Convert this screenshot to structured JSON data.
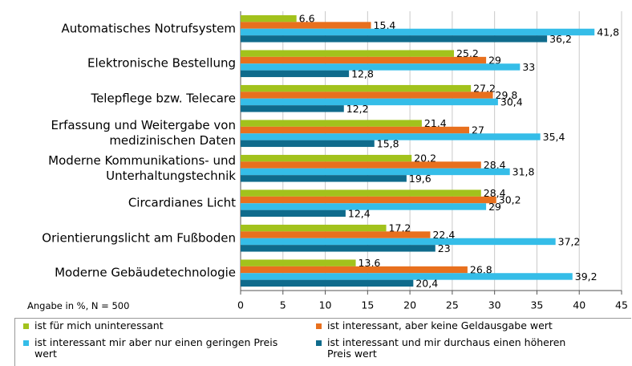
{
  "chart_data": {
    "type": "bar",
    "orientation": "horizontal",
    "note": "Angabe in %, N = 500",
    "categories": [
      "Automatisches Notrufsystem",
      "Elektronische Bestellung",
      "Telepflege bzw. Telecare",
      "Erfassung und Weitergabe von\nmedizinischen Daten",
      "Moderne Kommunikations- und\nUnterhaltungstechnik",
      "Circardianes Licht",
      "Orientierungslicht am Fußboden",
      "Moderne Gebäudetechnologie"
    ],
    "series": [
      {
        "name": "ist für mich uninteressant",
        "color": "#a2c21c",
        "values": [
          6.6,
          25.2,
          27.2,
          21.4,
          20.2,
          28.4,
          17.2,
          13.6
        ],
        "value_labels": [
          "6,6",
          "25,2",
          "27,2",
          "21,4",
          "20,2",
          "28,4",
          "17,2",
          "13,6"
        ]
      },
      {
        "name": "ist interessant, aber keine Geldausgabe wert",
        "color": "#e8701e",
        "values": [
          15.4,
          29,
          29.8,
          27,
          28.4,
          30.2,
          22.4,
          26.8
        ],
        "value_labels": [
          "15,4",
          "29",
          "29,8",
          "27",
          "28,4",
          "30,2",
          "22,4",
          "26,8"
        ]
      },
      {
        "name": "ist interessant mir aber nur einen geringen Preis wert",
        "color": "#35bde8",
        "values": [
          41.8,
          33,
          30.4,
          35.4,
          31.8,
          29,
          37.2,
          39.2
        ],
        "value_labels": [
          "41,8",
          "33",
          "30,4",
          "35,4",
          "31,8",
          "29",
          "37,2",
          "39,2"
        ]
      },
      {
        "name": "ist interessant und mir durchaus einen höheren Preis wert",
        "color": "#0f6b8c",
        "values": [
          36.2,
          12.8,
          12.2,
          15.8,
          19.6,
          12.4,
          23,
          20.4
        ],
        "value_labels": [
          "36,2",
          "12,8",
          "12,2",
          "15,8",
          "19,6",
          "12,4",
          "23",
          "20,4"
        ]
      }
    ],
    "xlim": [
      0,
      45
    ],
    "xticks": [
      0,
      5,
      10,
      15,
      20,
      25,
      30,
      35,
      40,
      45
    ],
    "grid": true
  }
}
